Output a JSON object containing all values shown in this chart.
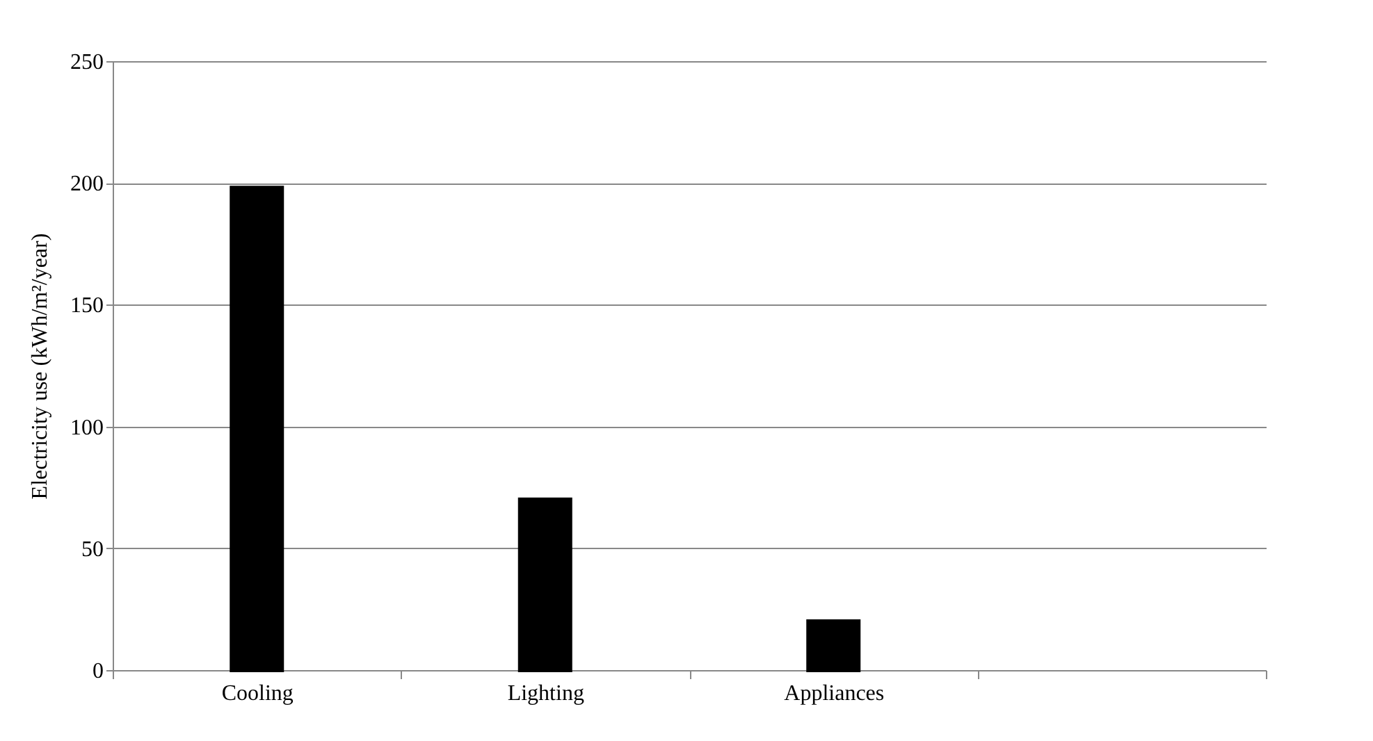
{
  "chart_data": {
    "type": "bar",
    "ylabel": "Electricity use (kWh/m²/year)",
    "categories": [
      "Cooling",
      "Lighting",
      "Appliances",
      null
    ],
    "values": [
      198,
      70,
      20,
      null
    ],
    "color": "#000000",
    "ylim": [
      0,
      250
    ],
    "yticks": [
      0,
      50,
      100,
      150,
      200,
      250
    ],
    "grid": "y"
  }
}
